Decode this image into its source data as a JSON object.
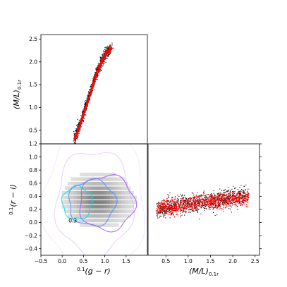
{
  "chart_data": [
    {
      "panel": "top-left",
      "type": "scatter",
      "xlim": [
        -0.5,
        2.0
      ],
      "ylim": [
        0.2,
        2.6
      ],
      "xticks": [],
      "yticks": [
        0.5,
        1.0,
        1.5,
        2.0,
        2.5
      ],
      "ytick_labels": [
        "0.5",
        "1.0",
        "1.5",
        "2.0",
        "2.5"
      ],
      "ylabel": "(M/L)",
      "ylabel_sub": "0.1r",
      "series": [
        {
          "color": "#000000",
          "trend_x": [
            0.3,
            0.55,
            0.8,
            1.0,
            1.15
          ],
          "trend_y": [
            0.32,
            1.0,
            1.75,
            2.15,
            2.3
          ],
          "scatter_width": 0.07
        },
        {
          "color": "#ff0000",
          "trend_x": [
            0.3,
            0.55,
            0.8,
            1.0,
            1.15
          ],
          "trend_y": [
            0.32,
            1.0,
            1.75,
            2.15,
            2.3
          ],
          "scatter_width": 0.03
        }
      ]
    },
    {
      "panel": "bottom-left",
      "type": "heatmap",
      "xlim": [
        -0.5,
        2.0
      ],
      "ylim": [
        -0.5,
        1.2
      ],
      "xticks": [
        -0.5,
        0.0,
        0.5,
        1.0,
        1.5
      ],
      "xtick_labels": [
        "−0.5",
        "0.0",
        "0.5",
        "1.0",
        "1.5"
      ],
      "yticks": [
        -0.4,
        -0.2,
        0.0,
        0.2,
        0.4,
        0.6,
        0.8,
        1.0,
        1.2
      ],
      "ytick_labels": [
        "−0.4",
        "−0.2",
        "0.0",
        "0.2",
        "0.4",
        "0.6",
        "0.8",
        "1.0",
        "1.2"
      ],
      "xlabel": "(g − r)",
      "xlabel_pre": "0.1",
      "ylabel": "(r − i)",
      "ylabel_pre": "0.1",
      "density_center": [
        0.8,
        0.3
      ],
      "contour_annotation": "0.3",
      "contour_colors": [
        "#00e5e5",
        "#4a90ff",
        "#9b59ff",
        "#c04dff",
        "#e08af0"
      ]
    },
    {
      "panel": "bottom-right",
      "type": "scatter",
      "xlim": [
        0.1,
        2.6
      ],
      "ylim": [
        -0.5,
        1.2
      ],
      "xticks": [
        0.5,
        1.0,
        1.5,
        2.0,
        2.5
      ],
      "xtick_labels": [
        "0.5",
        "1.0",
        "1.5",
        "2.0",
        "2.5"
      ],
      "yticks": [],
      "xlabel": "(M/L)",
      "xlabel_sub": "0.1r",
      "series": [
        {
          "color": "#000000",
          "trend_x": [
            0.3,
            2.35
          ],
          "trend_y": [
            0.2,
            0.42
          ],
          "scatter_width": 0.07
        },
        {
          "color": "#ff0000",
          "trend_x": [
            0.3,
            2.35
          ],
          "trend_y": [
            0.22,
            0.4
          ],
          "scatter_width": 0.06
        }
      ]
    }
  ]
}
